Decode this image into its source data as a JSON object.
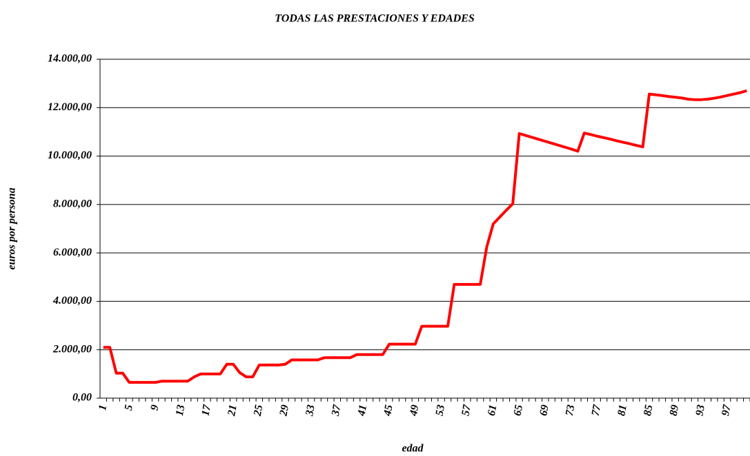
{
  "chart_data": {
    "type": "line",
    "title": "TODAS LAS PRESTACIONES Y EDADES",
    "x_label": "edad",
    "y_label": "euros por persona",
    "color": "#ff0000",
    "grid": true,
    "categories": [
      "1",
      null,
      null,
      null,
      "5",
      null,
      null,
      null,
      "9",
      null,
      null,
      null,
      "13",
      null,
      null,
      null,
      "17",
      null,
      null,
      null,
      "21",
      null,
      null,
      null,
      "25",
      null,
      null,
      null,
      "29",
      null,
      null,
      null,
      "33",
      null,
      null,
      null,
      "37",
      null,
      null,
      null,
      "41",
      null,
      null,
      null,
      "45",
      null,
      null,
      null,
      "49",
      null,
      null,
      null,
      "53",
      null,
      null,
      null,
      "57",
      null,
      null,
      null,
      "61",
      null,
      null,
      null,
      "65",
      null,
      null,
      null,
      "69",
      null,
      null,
      null,
      "73",
      null,
      null,
      null,
      "77",
      null,
      null,
      null,
      "81",
      null,
      null,
      null,
      "85",
      null,
      null,
      null,
      "89",
      null,
      null,
      null,
      "93",
      null,
      null,
      null,
      "97",
      null,
      null,
      null
    ],
    "values": [
      2100,
      2100,
      1030,
      1030,
      650,
      650,
      650,
      650,
      650,
      700,
      700,
      700,
      700,
      700,
      880,
      1000,
      1000,
      1000,
      1000,
      1400,
      1400,
      1050,
      880,
      880,
      1370,
      1370,
      1370,
      1370,
      1400,
      1580,
      1580,
      1580,
      1580,
      1580,
      1670,
      1670,
      1670,
      1670,
      1670,
      1800,
      1800,
      1800,
      1800,
      1800,
      2230,
      2230,
      2230,
      2230,
      2230,
      2970,
      2970,
      2970,
      2970,
      2970,
      4700,
      4700,
      4700,
      4700,
      4700,
      6250,
      7200,
      7480,
      7760,
      8030,
      10930,
      10850,
      10770,
      10690,
      10610,
      10530,
      10450,
      10370,
      10290,
      10200,
      10950,
      10890,
      10820,
      10760,
      10700,
      10630,
      10570,
      10510,
      10440,
      10380,
      12560,
      12530,
      12500,
      12460,
      12430,
      12400,
      12350,
      12330,
      12330,
      12350,
      12390,
      12440,
      12500,
      12560,
      12620,
      12700
    ],
    "ylim": [
      0,
      14000
    ],
    "yticks": [
      {
        "value": 0,
        "label": "0,00"
      },
      {
        "value": 2000,
        "label": "2.000,00"
      },
      {
        "value": 4000,
        "label": "4.000,00"
      },
      {
        "value": 6000,
        "label": "6.000,00"
      },
      {
        "value": 8000,
        "label": "8.000,00"
      },
      {
        "value": 10000,
        "label": "10.000,00"
      },
      {
        "value": 12000,
        "label": "12.000,00"
      },
      {
        "value": 14000,
        "label": "14.000,00"
      }
    ]
  }
}
